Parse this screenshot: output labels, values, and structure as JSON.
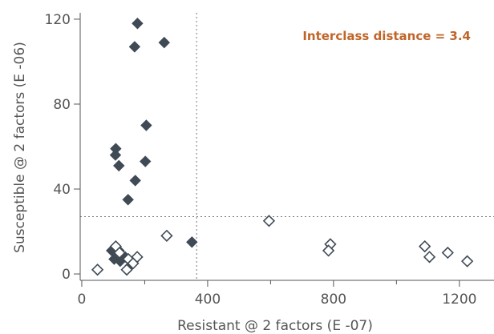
{
  "chart_data": {
    "type": "scatter",
    "xlabel": "Resistant @ 2 factors (E -07)",
    "ylabel": "Susceptible @ 2 factors (E -06)",
    "xlim": [
      -5,
      1310
    ],
    "ylim": [
      -3,
      123
    ],
    "x_ticks": [
      0,
      400,
      800,
      1200
    ],
    "y_ticks": [
      0,
      40,
      80,
      120
    ],
    "x_tick_labels": [
      "0",
      "400",
      "800",
      "1200"
    ],
    "y_tick_labels": [
      "0",
      "40",
      "80",
      "120"
    ],
    "grid": false,
    "threshold_lines": {
      "x": 365,
      "y": 27
    },
    "annotation": {
      "text": "Interclass distance = 3.4",
      "color": "#c0652a"
    },
    "colors": {
      "filled": "#3f4a55",
      "open_stroke": "#3f4a55",
      "axis": "#555555",
      "threshold": "#777777"
    },
    "series": [
      {
        "marker": "filled-diamond",
        "points": [
          [
            177,
            118
          ],
          [
            168,
            107
          ],
          [
            262,
            109
          ],
          [
            205,
            70
          ],
          [
            108,
            59
          ],
          [
            107,
            56
          ],
          [
            118,
            51
          ],
          [
            202,
            53
          ],
          [
            170,
            44
          ],
          [
            147,
            35
          ],
          [
            350,
            15
          ],
          [
            95,
            11
          ],
          [
            118,
            11
          ],
          [
            103,
            7
          ],
          [
            138,
            8
          ],
          [
            122,
            6
          ],
          [
            155,
            4
          ]
        ]
      },
      {
        "marker": "open-diamond",
        "points": [
          [
            50,
            2
          ],
          [
            108,
            13
          ],
          [
            120,
            10
          ],
          [
            148,
            7
          ],
          [
            176,
            8
          ],
          [
            163,
            5
          ],
          [
            143,
            2
          ],
          [
            270,
            18
          ],
          [
            595,
            25
          ],
          [
            790,
            14
          ],
          [
            784,
            11
          ],
          [
            1090,
            13
          ],
          [
            1105,
            8
          ],
          [
            1163,
            10
          ],
          [
            1225,
            6
          ]
        ]
      }
    ]
  }
}
